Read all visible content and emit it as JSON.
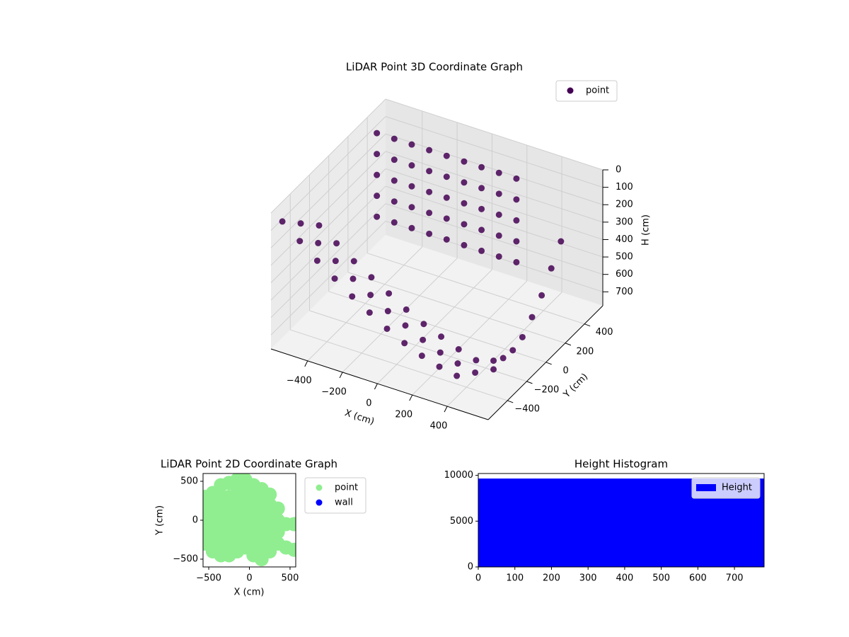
{
  "chart_data": [
    {
      "type": "scatter3d",
      "title": "LiDAR Point 3D Coordinate Graph",
      "xlabel": "X (cm)",
      "ylabel": "Y (cm)",
      "zlabel": "H (cm)",
      "xlim": [
        -610,
        635
      ],
      "ylim": [
        -600,
        590
      ],
      "zlim": [
        780,
        0
      ],
      "xticks": [
        {
          "value": -400,
          "label": "−400"
        },
        {
          "value": -200,
          "label": "−200"
        },
        0,
        200,
        400
      ],
      "yticks": [
        {
          "value": -400,
          "label": "−400"
        },
        {
          "value": -200,
          "label": "−200"
        },
        0,
        200,
        400
      ],
      "zticks": [
        0,
        100,
        200,
        300,
        400,
        500,
        600,
        700
      ],
      "grid": true,
      "legend": "upper right",
      "series": [
        {
          "name": "point",
          "color": "#440154",
          "x": [
            -600,
            -500,
            -400,
            -300,
            -200,
            -100,
            0,
            100,
            200,
            300,
            400,
            -550,
            -450,
            -350,
            -250,
            -150,
            -50,
            50,
            150,
            250,
            350,
            450,
            -500,
            -400,
            -300,
            -200,
            -100,
            0,
            100,
            200,
            300,
            400,
            500,
            -500,
            -500,
            -500,
            -500,
            -500,
            -400,
            -400,
            -400,
            -400,
            -400,
            -300,
            -300,
            -300,
            -300,
            -300,
            -200,
            -200,
            -200,
            -200,
            -200,
            -100,
            -100,
            -100,
            -100,
            -100,
            0,
            0,
            0,
            0,
            0,
            100,
            100,
            100,
            100,
            100,
            200,
            200,
            200,
            200,
            200,
            300,
            300,
            300,
            300,
            300,
            500,
            500,
            500,
            500,
            500,
            500,
            500,
            500
          ],
          "y": [
            -500,
            -500,
            -500,
            -500,
            -500,
            -500,
            -500,
            -500,
            -500,
            -500,
            -500,
            -400,
            -400,
            -400,
            -400,
            -400,
            -400,
            -400,
            -400,
            -400,
            -400,
            -400,
            -300,
            -300,
            -300,
            -300,
            -300,
            -300,
            -300,
            -300,
            -300,
            -300,
            -300,
            300,
            300,
            300,
            300,
            300,
            300,
            300,
            300,
            300,
            300,
            300,
            300,
            300,
            300,
            300,
            300,
            300,
            300,
            300,
            300,
            300,
            300,
            300,
            300,
            300,
            300,
            300,
            300,
            300,
            300,
            300,
            300,
            300,
            300,
            300,
            300,
            300,
            300,
            300,
            300,
            300,
            300,
            300,
            300,
            300,
            400,
            300,
            200,
            100,
            0,
            -100,
            -200,
            -300
          ],
          "z": [
            100,
            180,
            260,
            330,
            400,
            460,
            520,
            570,
            610,
            640,
            660,
            150,
            230,
            300,
            370,
            430,
            490,
            540,
            590,
            630,
            660,
            680,
            200,
            270,
            340,
            400,
            460,
            520,
            570,
            610,
            650,
            680,
            700,
            0,
            120,
            240,
            360,
            480,
            0,
            120,
            240,
            360,
            480,
            0,
            120,
            240,
            360,
            480,
            0,
            120,
            240,
            360,
            480,
            0,
            120,
            240,
            360,
            480,
            0,
            120,
            240,
            360,
            480,
            0,
            120,
            240,
            360,
            480,
            0,
            120,
            240,
            360,
            480,
            0,
            120,
            240,
            360,
            480,
            350,
            450,
            550,
            620,
            680,
            700,
            690,
            650
          ]
        }
      ]
    },
    {
      "type": "scatter",
      "title": "LiDAR Point 2D Coordinate Graph",
      "xlabel": "X (cm)",
      "ylabel": "Y (cm)",
      "xlim": [
        -570,
        570
      ],
      "ylim": [
        -600,
        600
      ],
      "xticks": [
        {
          "value": -500,
          "label": "−500"
        },
        0,
        500
      ],
      "yticks": [
        {
          "value": -500,
          "label": "−500"
        },
        0,
        500
      ],
      "legend": "outside upper right",
      "series": [
        {
          "name": "point",
          "color": "#90ee90",
          "x": [
            -550,
            -550,
            -550,
            -550,
            -550,
            -450,
            -450,
            -450,
            -450,
            -450,
            -450,
            -350,
            -350,
            -350,
            -350,
            -350,
            -350,
            -350,
            -250,
            -250,
            -250,
            -250,
            -250,
            -250,
            -250,
            -150,
            -150,
            -150,
            -150,
            -150,
            -150,
            -150,
            -50,
            -50,
            -50,
            -50,
            -50,
            -50,
            -50,
            50,
            50,
            50,
            50,
            50,
            50,
            50,
            150,
            150,
            150,
            150,
            150,
            150,
            150,
            250,
            250,
            250,
            250,
            250,
            250,
            350,
            350,
            350,
            350,
            450,
            450,
            550,
            550
          ],
          "y": [
            -300,
            -150,
            0,
            150,
            300,
            -400,
            -250,
            -100,
            50,
            200,
            350,
            -450,
            -300,
            -150,
            0,
            150,
            300,
            450,
            -450,
            -300,
            -150,
            0,
            150,
            300,
            480,
            -400,
            -250,
            -100,
            50,
            200,
            350,
            520,
            -350,
            -200,
            -50,
            100,
            250,
            400,
            520,
            -450,
            -300,
            -150,
            0,
            150,
            300,
            450,
            -500,
            -350,
            -200,
            -50,
            100,
            250,
            400,
            -400,
            -250,
            -100,
            50,
            200,
            330,
            -300,
            -150,
            0,
            150,
            -50,
            -350,
            -50,
            -380
          ]
        },
        {
          "name": "wall",
          "color": "#0000ff",
          "x": [],
          "y": []
        }
      ]
    },
    {
      "type": "histogram",
      "title": "Height Histogram",
      "xlim": [
        0,
        781
      ],
      "ylim": [
        0,
        10200
      ],
      "xticks": [
        0,
        100,
        200,
        300,
        400,
        500,
        600,
        700
      ],
      "yticks": [
        0,
        5000,
        10000
      ],
      "legend": "upper right",
      "series": [
        {
          "name": "Height",
          "color": "#0000ff",
          "bins": [
            0,
            78,
            156,
            234,
            312,
            390,
            468,
            546,
            624,
            702,
            781
          ],
          "values": [
            9650,
            9650,
            9650,
            9650,
            9650,
            9650,
            9650,
            9650,
            9650,
            9650
          ]
        }
      ]
    }
  ]
}
